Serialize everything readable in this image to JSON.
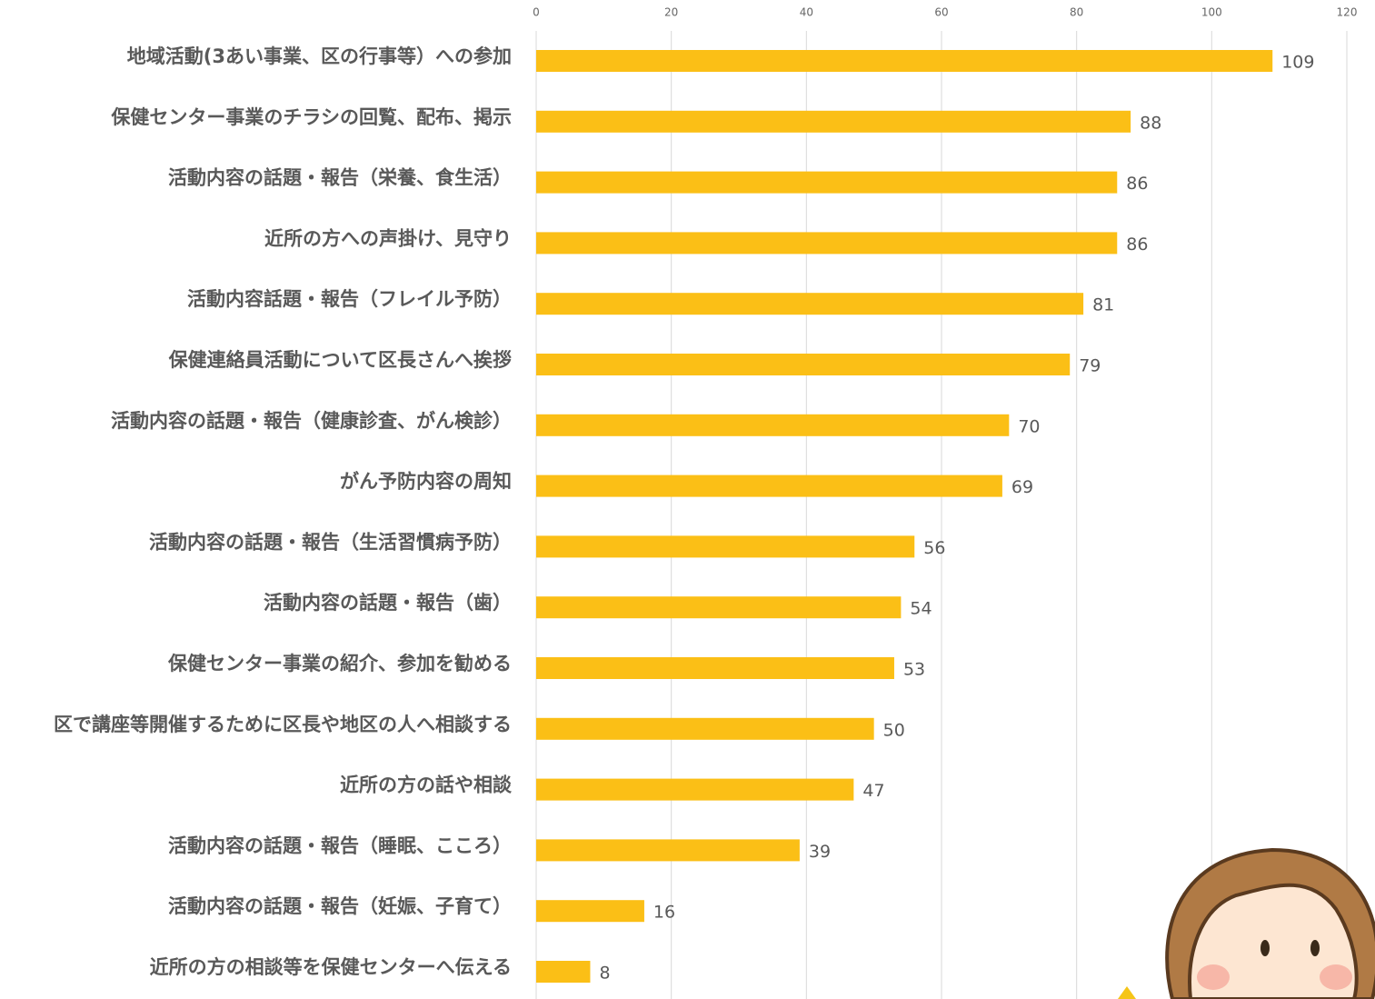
{
  "chart_data": {
    "type": "bar",
    "orientation": "horizontal",
    "categories": [
      "地域活動(3あい事業、区の行事等）への参加",
      "保健センター事業のチラシの回覧、配布、掲示",
      "活動内容の話題・報告（栄養、食生活）",
      "近所の方への声掛け、見守り",
      "活動内容話題・報告（フレイル予防）",
      "保健連絡員活動について区長さんへ挨拶",
      "活動内容の話題・報告（健康診査、がん検診）",
      "がん予防内容の周知",
      "活動内容の話題・報告（生活習慣病予防）",
      "活動内容の話題・報告（歯）",
      "保健センター事業の紹介、参加を勧める",
      "区で講座等開催するために区長や地区の人へ相談する",
      "近所の方の話や相談",
      "活動内容の話題・報告（睡眠、こころ）",
      "活動内容の話題・報告（妊娠、子育て）",
      "近所の方の相談等を保健センターへ伝える"
    ],
    "values": [
      109,
      88,
      86,
      86,
      81,
      79,
      70,
      69,
      56,
      54,
      53,
      50,
      47,
      39,
      16,
      8
    ],
    "color": "#fbbf16",
    "xlim": [
      0,
      120
    ],
    "xticks": [
      0,
      20,
      40,
      60,
      80,
      100,
      120
    ],
    "grid": true
  }
}
